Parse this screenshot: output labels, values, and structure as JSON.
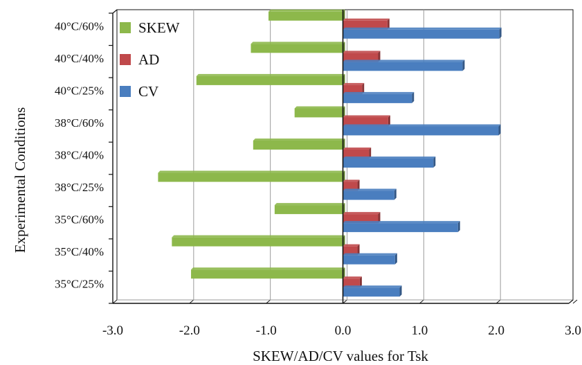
{
  "chart_data": {
    "type": "bar",
    "orientation": "horizontal",
    "categories": [
      "35°C/25%",
      "35°C/40%",
      "35°C/60%",
      "38°C/25%",
      "38°C/40%",
      "38°C/60%",
      "40°C/25%",
      "40°C/40%",
      "40°C/60%"
    ],
    "series": [
      {
        "name": "SKEW",
        "color": "#8db84b",
        "values": [
          -1.98,
          -2.23,
          -0.89,
          -2.41,
          -1.17,
          -0.63,
          -1.91,
          -1.2,
          -0.97
        ]
      },
      {
        "name": "AD",
        "color": "#c0494b",
        "values": [
          0.22,
          0.19,
          0.46,
          0.19,
          0.34,
          0.59,
          0.25,
          0.46,
          0.58
        ]
      },
      {
        "name": "CV",
        "color": "#4a7ebf",
        "values": [
          0.74,
          0.68,
          1.5,
          0.67,
          1.18,
          2.03,
          0.9,
          1.56,
          2.04
        ]
      }
    ],
    "xlim": [
      -3.0,
      3.0
    ],
    "xticks": [
      "-3.0",
      "-2.0",
      "-1.0",
      "0.0",
      "1.0",
      "2.0",
      "3.0"
    ],
    "xlabel": "SKEW/AD/CV values for Tsk",
    "ylabel": "Experimental Conditions",
    "grid": true,
    "legend_position": "top-left"
  },
  "colors": {
    "grid": "#9a9a9a",
    "axis": "#111111",
    "wall": "#ffffff"
  }
}
